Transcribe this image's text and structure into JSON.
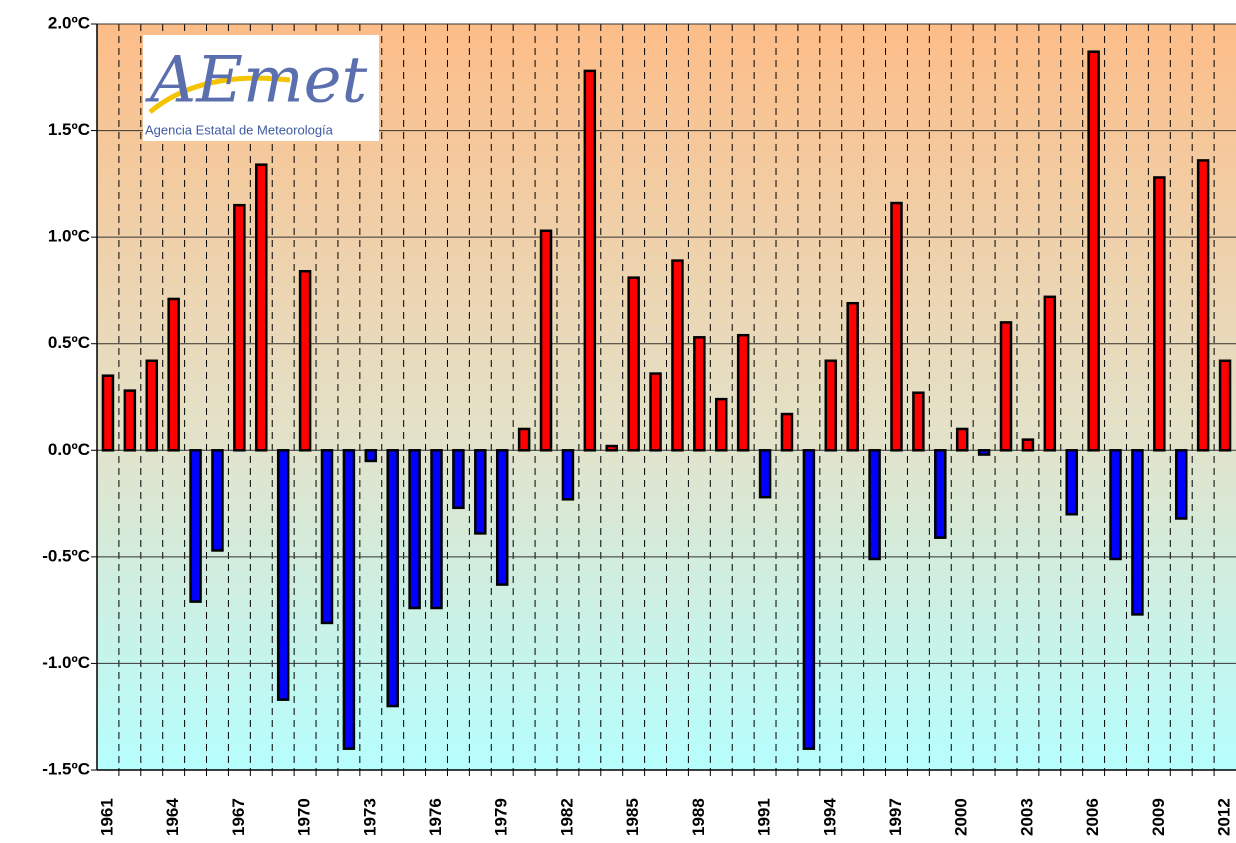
{
  "chart_data": {
    "type": "bar",
    "categories": [
      "1961",
      null,
      null,
      "1964",
      null,
      null,
      "1967",
      null,
      null,
      "1970",
      null,
      null,
      "1973",
      null,
      null,
      "1976",
      null,
      null,
      "1979",
      null,
      null,
      "1982",
      null,
      null,
      "1985",
      null,
      null,
      "1988",
      null,
      null,
      "1991",
      null,
      null,
      "1994",
      null,
      null,
      "1997",
      null,
      null,
      "2000",
      null,
      null,
      "2003",
      null,
      null,
      "2006",
      null,
      null,
      "2009",
      null,
      null,
      "2012"
    ],
    "values": [
      0.35,
      0.28,
      0.42,
      0.71,
      -0.71,
      -0.47,
      1.15,
      1.34,
      -1.17,
      0.84,
      -0.81,
      -1.4,
      -0.05,
      -1.2,
      -0.74,
      -0.74,
      -0.27,
      -0.39,
      -0.63,
      0.1,
      1.03,
      -0.23,
      1.78,
      0.02,
      0.81,
      0.36,
      0.89,
      0.53,
      0.24,
      0.54,
      -0.22,
      0.17,
      -1.4,
      0.42,
      0.69,
      -0.51,
      1.16,
      0.27,
      -0.41,
      0.1,
      -0.02,
      0.6,
      0.05,
      0.72,
      -0.3,
      1.87,
      -0.51,
      -0.77,
      1.28,
      -0.32,
      1.36,
      0.42
    ],
    "positive_color": "#ff0000",
    "negative_color": "#0000ff",
    "ylim": [
      -1.5,
      2.0
    ],
    "yticks": [
      {
        "value": -1.5,
        "label": "-1.5ºC"
      },
      {
        "value": -1.0,
        "label": "-1.0ºC"
      },
      {
        "value": -0.5,
        "label": "-0.5ºC"
      },
      {
        "value": 0,
        "label": "0.0ºC"
      },
      {
        "value": 0.5,
        "label": "0.5ºC"
      },
      {
        "value": 1.0,
        "label": "1.0ºC"
      },
      {
        "value": 1.5,
        "label": "1.5ºC"
      },
      {
        "value": 2.0,
        "label": "2.0ºC"
      }
    ],
    "grid": true
  },
  "logo": {
    "name": "AEmet",
    "subtitle": "Agencia Estatal de Meteorología"
  }
}
